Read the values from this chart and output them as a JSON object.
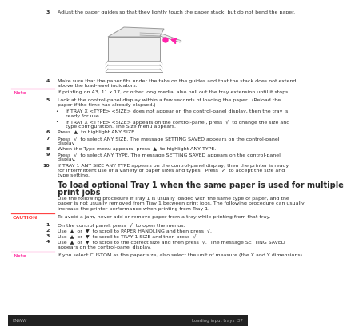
{
  "bg_color": "#ffffff",
  "note_color": "#ff44aa",
  "caution_color": "#ff4444",
  "dark_text": "#2a2a2a",
  "gray_text": "#555555",
  "footer_bg": "#222222",
  "footer_text": "#aaaaaa",
  "step3_text": "Adjust the paper guides so that they lightly touch the paper stack, but do not bend the paper.",
  "step4_line1": "Make sure that the paper fits under the tabs on the guides and that the stack does not extend",
  "step4_line2": "above the load-level indicators.",
  "note1_label": "Note",
  "note1_text": "If printing on A3, 11 x 17, or other long media, also pull out the tray extension until it stops.",
  "step5_line1": "Look at the control-panel display within a few seconds of loading the paper.  (Reload the",
  "step5_line2": "paper if the time has already elapsed.)",
  "b1_line1": "If TRAY X <TYPE> <SIZE> does not appear on the control-panel display, then the tray is",
  "b1_line2": "ready for use.",
  "b2_line1": "If TRAY X <TYPE> <SIZE> appears on the control-panel, press  √  to change the size and",
  "b2_line2": "type configuration. The Size menu appears.",
  "step6": "Press  ▲  to highlight ANY SIZE.",
  "step7_line1": "Press  √  to select ANY SIZE. The message SETTING SAVED appears on the control-panel",
  "step7_line2": "display",
  "step8": "When the Type menu appears, press  ▲  to highlight ANY TYPE.",
  "step9_line1": "Press  √  to select ANY TYPE. The message SETTING SAVED appears on the control-panel",
  "step9_line2": "display.",
  "step10_line1": "If TRAY 1 ANY SIZE ANY TYPE appears on the control-panel display, then the printer is ready",
  "step10_line2": "for intermittent use of a variety of paper sizes and types.  Press  ✓  to accept the size and",
  "step10_line3": "type setting.",
  "title_line1": "To load optional Tray 1 when the same paper is used for multiple",
  "title_line2": "print jobs",
  "desc_line1": "Use the following procedure if Tray 1 is usually loaded with the same type of paper, and the",
  "desc_line2": "paper is not usually removed from Tray 1 between print jobs. The following procedure can usually",
  "desc_line3": "increase the printer performance when printing from Tray 1.",
  "caution_label": "CAUTION",
  "caution_text": "To avoid a jam, never add or remove paper from a tray while printing from that tray.",
  "s1": "On the control panel, press  √  to open the menus.",
  "s2_line1": "Use  ▲  or  ▼  to scroll to PAPER HANDLING and then press  √.",
  "s3_line1": "Use  ▲  or  ▼  to scroll to TRAY 1 SIZE and then press  √.",
  "s4_line1": "Use  ▲  or  ▼  to scroll to the correct size and then press  √.  The message SETTING SAVED",
  "s4_line2": "appears on the control-panel display.",
  "note2_label": "Note",
  "note2_text": "If you select CUSTOM as the paper size, also select the unit of measure (the X and Y dimensions).",
  "footer_left": "ENWW",
  "footer_right": "Loading input trays  37"
}
